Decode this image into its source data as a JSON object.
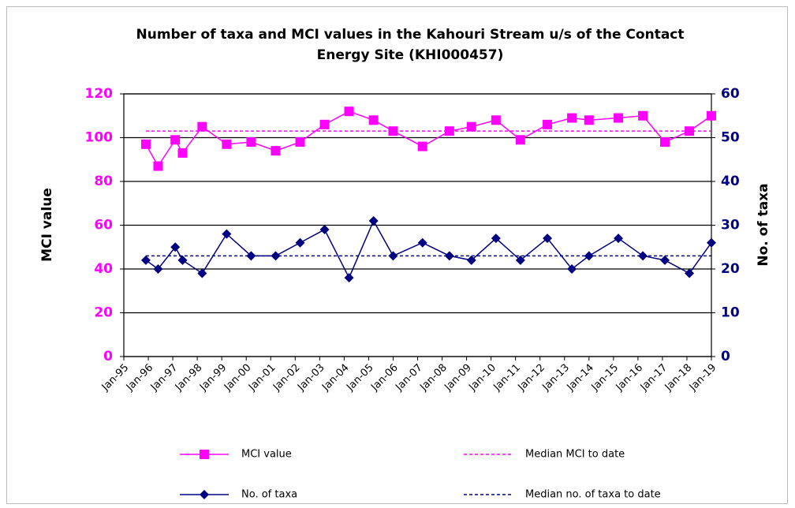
{
  "chart_data": {
    "type": "line",
    "title": [
      "Number of taxa and MCI values in the Kahouri Stream u/s of the Contact",
      "Energy Site (KHI000457)"
    ],
    "y_label": "MCI value",
    "y2_label": "No. of taxa",
    "x": [
      1995.9,
      1996.4,
      1997.1,
      1997.4,
      1998.2,
      1999.2,
      2000.2,
      2001.2,
      2002.2,
      2003.2,
      2004.2,
      2005.2,
      2006.0,
      2007.2,
      2008.3,
      2009.2,
      2010.2,
      2011.2,
      2012.3,
      2013.3,
      2014.0,
      2015.2,
      2016.2,
      2017.1,
      2018.1,
      2019.0
    ],
    "series": [
      {
        "name": "MCI value",
        "color": "#ff00ff",
        "marker": "square",
        "axis": "y",
        "values": [
          97,
          87,
          99,
          93,
          105,
          97,
          98,
          94,
          98,
          106,
          112,
          108,
          103,
          96,
          103,
          105,
          108,
          99,
          106,
          109,
          108,
          109,
          110,
          98,
          103,
          110
        ]
      },
      {
        "name": "No. of taxa",
        "color": "#000080",
        "marker": "diamond",
        "axis": "y2",
        "values": [
          22,
          20,
          25,
          22,
          19,
          28,
          23,
          23,
          26,
          29,
          18,
          31,
          23,
          26,
          23,
          22,
          27,
          22,
          27,
          20,
          23,
          27,
          23,
          22,
          19,
          26
        ]
      }
    ],
    "reference_lines": [
      {
        "name": "Median MCI to date",
        "color": "#ff00ff",
        "value": 103,
        "axis": "y"
      },
      {
        "name": "Median no. of taxa to date",
        "color": "#000080",
        "value": 23,
        "axis": "y2"
      }
    ],
    "xlim": [
      1995,
      2019
    ],
    "xticks": [
      {
        "value": 1995,
        "label": "Jan-95"
      },
      {
        "value": 1996,
        "label": "Jan-96"
      },
      {
        "value": 1997,
        "label": "Jan-97"
      },
      {
        "value": 1998,
        "label": "Jan-98"
      },
      {
        "value": 1999,
        "label": "Jan-99"
      },
      {
        "value": 2000,
        "label": "Jan-00"
      },
      {
        "value": 2001,
        "label": "Jan-01"
      },
      {
        "value": 2002,
        "label": "Jan-02"
      },
      {
        "value": 2003,
        "label": "Jan-03"
      },
      {
        "value": 2004,
        "label": "Jan-04"
      },
      {
        "value": 2005,
        "label": "Jan-05"
      },
      {
        "value": 2006,
        "label": "Jan-06"
      },
      {
        "value": 2007,
        "label": "Jan-07"
      },
      {
        "value": 2008,
        "label": "Jan-08"
      },
      {
        "value": 2009,
        "label": "Jan-09"
      },
      {
        "value": 2010,
        "label": "Jan-10"
      },
      {
        "value": 2011,
        "label": "Jan-11"
      },
      {
        "value": 2012,
        "label": "Jan-12"
      },
      {
        "value": 2013,
        "label": "Jan-13"
      },
      {
        "value": 2014,
        "label": "Jan-14"
      },
      {
        "value": 2015,
        "label": "Jan-15"
      },
      {
        "value": 2016,
        "label": "Jan-16"
      },
      {
        "value": 2017,
        "label": "Jan-17"
      },
      {
        "value": 2018,
        "label": "Jan-18"
      },
      {
        "value": 2019,
        "label": "Jan-19"
      }
    ],
    "ylim": [
      0,
      120
    ],
    "yticks": [
      0,
      20,
      40,
      60,
      80,
      100,
      120
    ],
    "y2lim": [
      0,
      60
    ],
    "y2ticks": [
      0,
      10,
      20,
      30,
      40,
      50,
      60
    ],
    "ytick_color": "#ff00ff",
    "y2tick_color": "#000080",
    "grid": true,
    "legend": "bottom"
  }
}
